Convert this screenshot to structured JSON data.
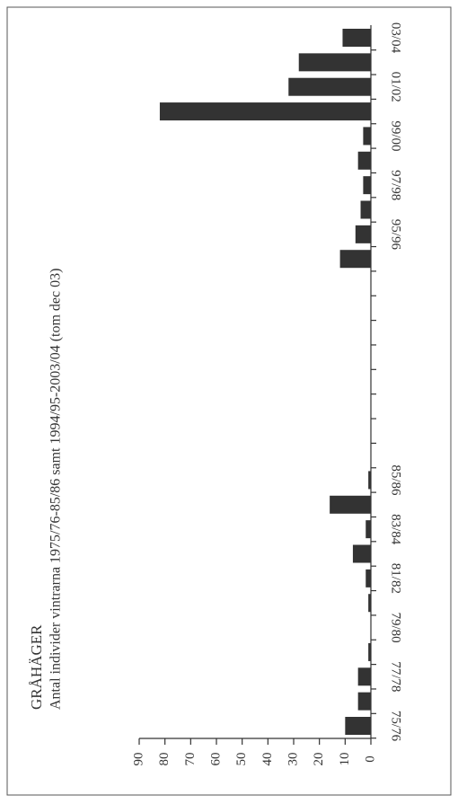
{
  "chart_data": {
    "type": "bar",
    "orientation": "horizontal",
    "title": "GRÅHÄGER",
    "subtitle": "Antal individer vintrarna 1975/76-85/86 samt 1994/95-2003/04 (tom dec 03)",
    "categories": [
      "75/76",
      null,
      "77/78",
      null,
      "79/80",
      null,
      "81/82",
      null,
      "83/84",
      null,
      "85/86",
      null,
      null,
      null,
      null,
      null,
      null,
      null,
      null,
      null,
      "95/96",
      null,
      "97/98",
      null,
      "99/00",
      null,
      "01/02",
      null,
      "03/04"
    ],
    "values": [
      10,
      5,
      5,
      1,
      0,
      1,
      2,
      7,
      2,
      16,
      1,
      null,
      null,
      null,
      null,
      null,
      null,
      null,
      null,
      12,
      6,
      4,
      3,
      5,
      3,
      82,
      32,
      28,
      11
    ],
    "color": "#333333",
    "ylim": [
      0,
      90
    ],
    "yticks": [
      0,
      10,
      20,
      30,
      40,
      50,
      60,
      70,
      80,
      90
    ]
  }
}
